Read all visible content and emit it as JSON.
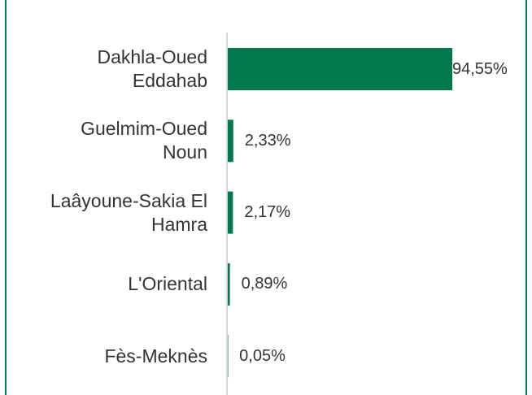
{
  "chart_data": {
    "type": "bar",
    "orientation": "horizontal",
    "categories": [
      "Dakhla-Oued Eddahab",
      "Guelmim-Oued Noun",
      "Laâyoune-Sakia El Hamra",
      "L'Oriental",
      "Fès-Meknès"
    ],
    "values": [
      94.55,
      2.33,
      2.17,
      0.89,
      0.05
    ],
    "value_labels": [
      "94,55%",
      "2,33%",
      "2,17%",
      "0,89%",
      "0,05%"
    ],
    "color": "#007a4d"
  }
}
